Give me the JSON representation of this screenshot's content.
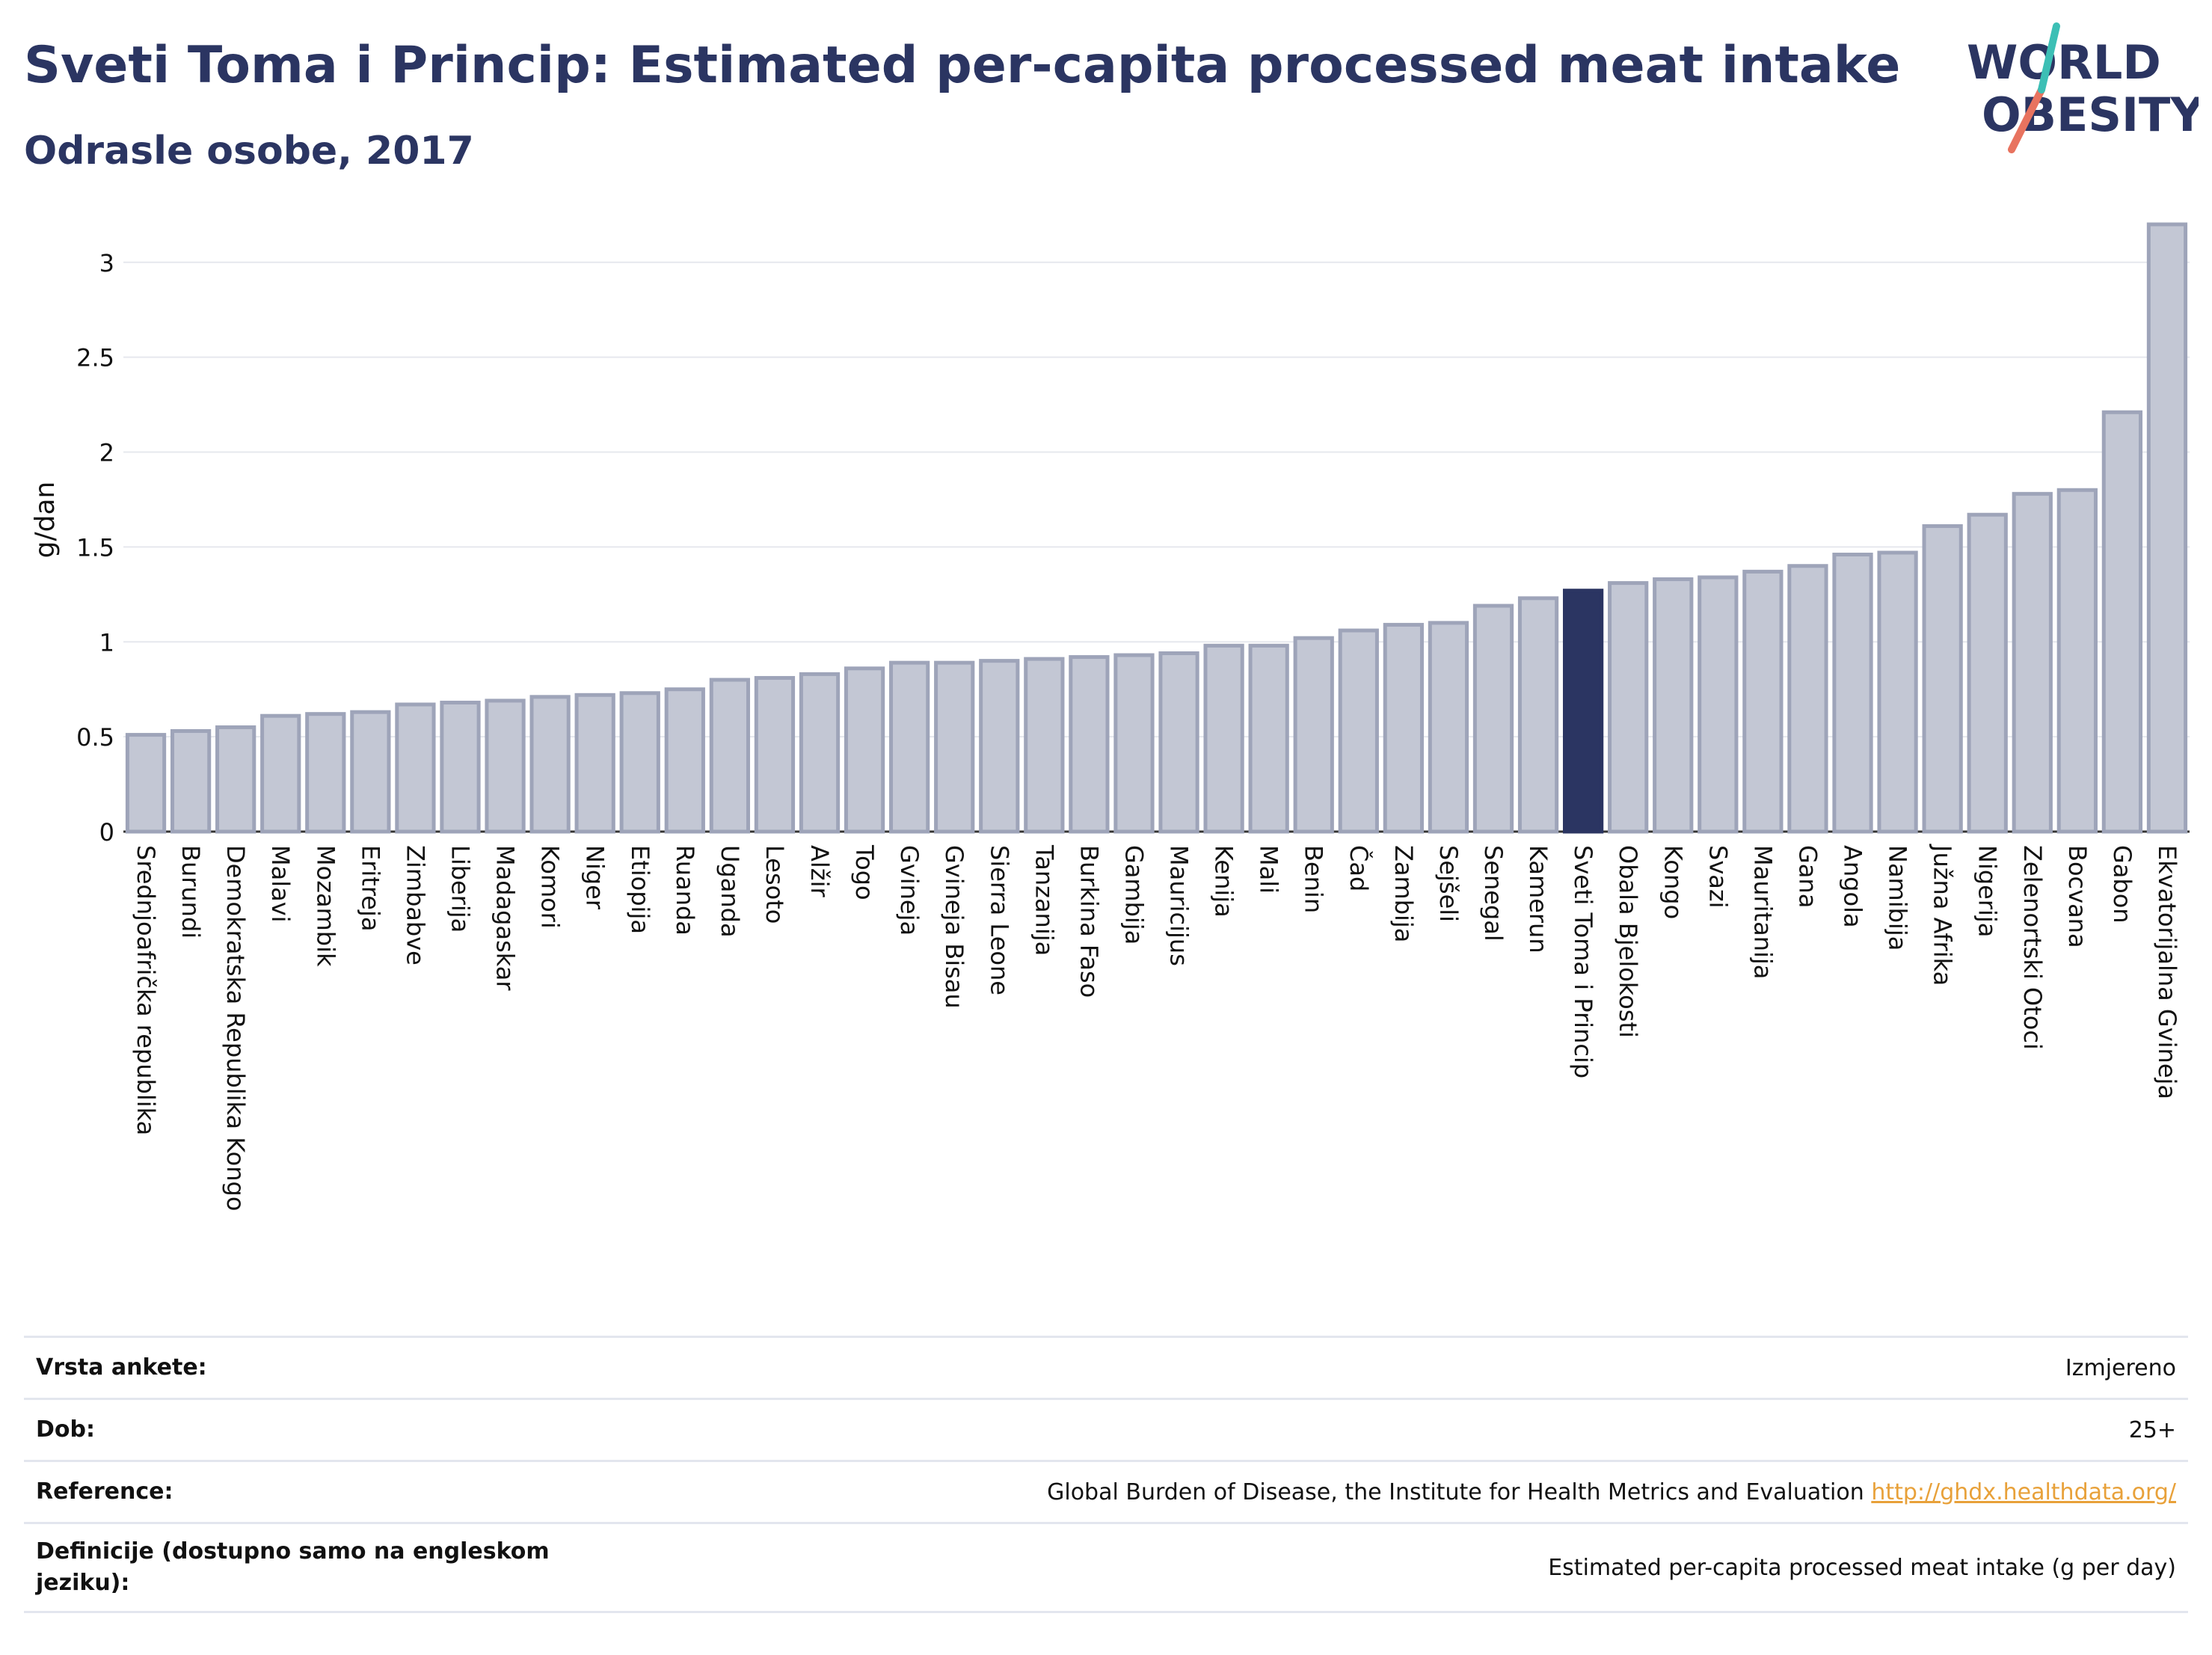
{
  "header": {
    "title": "Sveti Toma i Princip: Estimated per-capita processed meat intake",
    "subtitle": "Odrasle osobe, 2017"
  },
  "logo": {
    "line1": "WORLD",
    "line2": "OBESITY",
    "name": "world-obesity-logo"
  },
  "colors": {
    "bar": "#c3c7d4",
    "bar_stroke": "#9ea4b9",
    "highlight": "#2b3562",
    "title": "#2b3562",
    "link": "#e8a13a",
    "grid": "#e6e8ee"
  },
  "chart_data": {
    "type": "bar",
    "ylabel": "g/dan",
    "ylim": [
      0,
      3.2
    ],
    "yticks": [
      0,
      0.5,
      1,
      1.5,
      2,
      2.5,
      3
    ],
    "ytick_labels": [
      "0",
      "0.5",
      "1",
      "1.5",
      "2",
      "2.5",
      "3"
    ],
    "highlight": "Sveti Toma i Princip",
    "categories": [
      "Srednjoafrička republika",
      "Burundi",
      "Demokratska Republika Kongo",
      "Malavi",
      "Mozambik",
      "Eritreja",
      "Zimbabve",
      "Liberija",
      "Madagaskar",
      "Komori",
      "Niger",
      "Etiopija",
      "Ruanda",
      "Uganda",
      "Lesoto",
      "Alžir",
      "Togo",
      "Gvineja",
      "Gvineja Bisau",
      "Sierra Leone",
      "Tanzanija",
      "Burkina Faso",
      "Gambija",
      "Mauricijus",
      "Kenija",
      "Mali",
      "Benin",
      "Čad",
      "Zambija",
      "Sejšeli",
      "Senegal",
      "Kamerun",
      "Sveti Toma i Princip",
      "Obala Bjelokosti",
      "Kongo",
      "Svazi",
      "Mauritanija",
      "Gana",
      "Angola",
      "Namibija",
      "Južna Afrika",
      "Nigerija",
      "Zelenortski Otoci",
      "Bocvana",
      "Gabon",
      "Ekvatorijalna Gvineja"
    ],
    "values": [
      0.51,
      0.53,
      0.55,
      0.61,
      0.62,
      0.63,
      0.67,
      0.68,
      0.69,
      0.71,
      0.72,
      0.73,
      0.75,
      0.8,
      0.81,
      0.83,
      0.86,
      0.89,
      0.89,
      0.9,
      0.91,
      0.92,
      0.93,
      0.94,
      0.98,
      0.98,
      1.02,
      1.06,
      1.09,
      1.1,
      1.19,
      1.23,
      1.27,
      1.31,
      1.33,
      1.34,
      1.37,
      1.4,
      1.46,
      1.47,
      1.61,
      1.67,
      1.78,
      1.8,
      2.21,
      3.2
    ]
  },
  "info": [
    {
      "label": "Vrsta ankete:",
      "value": "Izmjereno"
    },
    {
      "label": "Dob:",
      "value": "25+"
    },
    {
      "label": "Reference:",
      "value": "Global Burden of Disease, the Institute for Health Metrics and Evaluation",
      "link": "http://ghdx.healthdata.org/"
    },
    {
      "label": "Definicije (dostupno samo na engleskom jeziku):",
      "value": "Estimated per-capita processed meat intake (g per day)"
    }
  ]
}
